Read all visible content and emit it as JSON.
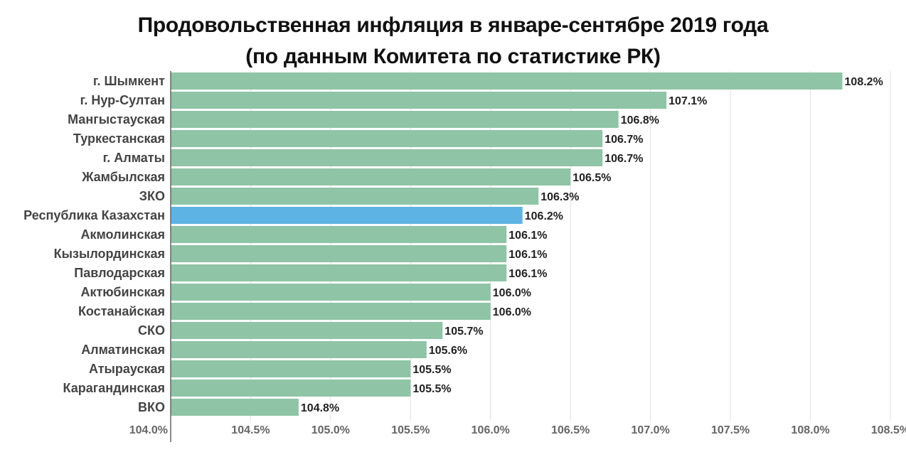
{
  "colors": {
    "bar": "#8fc4a6",
    "highlight_bar": "#5db4e4",
    "grid": "#e0e0e0",
    "axis": "#666666"
  },
  "chart_data": {
    "type": "bar",
    "orientation": "horizontal",
    "title": "Продовольственная инфляция в январе-сентябре 2019 года",
    "subtitle": "(по данным Комитета по статистике РК)",
    "categories": [
      "г. Шымкент",
      "г. Нур-Султан",
      "Мангыстауская",
      "Туркестанская",
      "г. Алматы",
      "Жамбылская",
      "ЗКО",
      "Республика Казахстан",
      "Акмолинская",
      "Кызылординская",
      "Павлодарская",
      "Актюбинская",
      "Костанайская",
      "СКО",
      "Алматинская",
      "Атырауская",
      "Карагандинская",
      "ВКО"
    ],
    "values": [
      108.2,
      107.1,
      106.8,
      106.7,
      106.7,
      106.5,
      106.3,
      106.2,
      106.1,
      106.1,
      106.1,
      106.0,
      106.0,
      105.7,
      105.6,
      105.5,
      105.5,
      104.8
    ],
    "value_labels": [
      "108.2%",
      "107.1%",
      "106.8%",
      "106.7%",
      "106.7%",
      "106.5%",
      "106.3%",
      "106.2%",
      "106.1%",
      "106.1%",
      "106.1%",
      "106.0%",
      "106.0%",
      "105.7%",
      "105.6%",
      "105.5%",
      "105.5%",
      "104.8%"
    ],
    "highlight": "Республика Казахстан",
    "xlim": [
      104.0,
      108.5
    ],
    "xticks": [
      104.0,
      104.5,
      105.0,
      105.5,
      106.0,
      106.5,
      107.0,
      107.5,
      108.0,
      108.5
    ],
    "xtick_labels": [
      "104.0%",
      "104.5%",
      "105.0%",
      "105.5%",
      "106.0%",
      "106.5%",
      "107.0%",
      "107.5%",
      "108.0%",
      "108.5%"
    ],
    "grid": true,
    "legend": "none"
  }
}
